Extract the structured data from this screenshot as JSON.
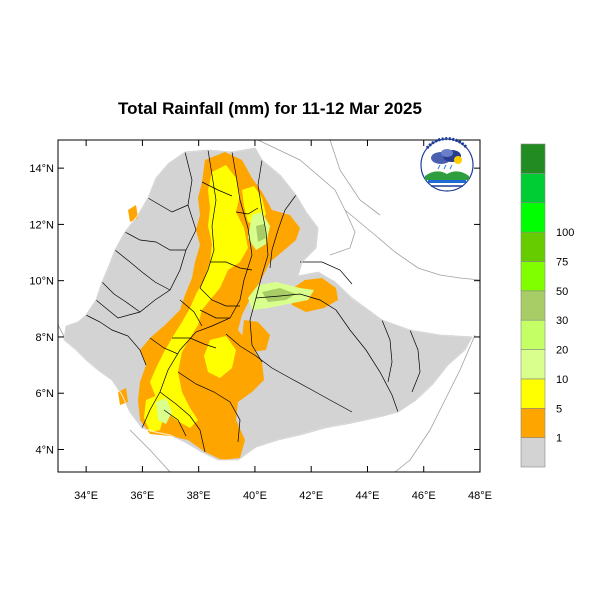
{
  "title": "Total Rainfall (mm) for 11-12 Mar 2025",
  "map": {
    "lon_range": [
      33,
      48
    ],
    "lat_range": [
      3.2,
      15
    ],
    "x_ticks": [
      {
        "value": 34,
        "label": "34°E"
      },
      {
        "value": 36,
        "label": "36°E"
      },
      {
        "value": 38,
        "label": "38°E"
      },
      {
        "value": 40,
        "label": "40°E"
      },
      {
        "value": 42,
        "label": "42°E"
      },
      {
        "value": 44,
        "label": "44°E"
      },
      {
        "value": 46,
        "label": "46°E"
      },
      {
        "value": 48,
        "label": "48°E"
      }
    ],
    "y_ticks": [
      {
        "value": 14,
        "label": "14°N"
      },
      {
        "value": 12,
        "label": "12°N"
      },
      {
        "value": 10,
        "label": "10°N"
      },
      {
        "value": 8,
        "label": "8°N"
      },
      {
        "value": 6,
        "label": "6°N"
      },
      {
        "value": 4,
        "label": "4°N"
      }
    ]
  },
  "legend": {
    "labels": [
      "1",
      "5",
      "10",
      "20",
      "30",
      "50",
      "75",
      "100"
    ],
    "colors": [
      "#d3d3d3",
      "#ffa500",
      "#ffff00",
      "#d9ff8c",
      "#c5ff66",
      "#a8cc66",
      "#7fff00",
      "#66cc00",
      "#00ff00",
      "#00cc33",
      "#228b22"
    ]
  },
  "logo": {
    "name": "ethiopian-meteorology-institute-logo",
    "top_text": "የኢትዮጵያ ሜትዮሮሎጂ ኢንስቲትዩት",
    "bottom_text": "Ethiopian Meteorology Institute",
    "abbr": "EMI"
  },
  "colors": {
    "country_fill": "#d3d3d3",
    "border": "#888888",
    "region_line": "#000000"
  }
}
